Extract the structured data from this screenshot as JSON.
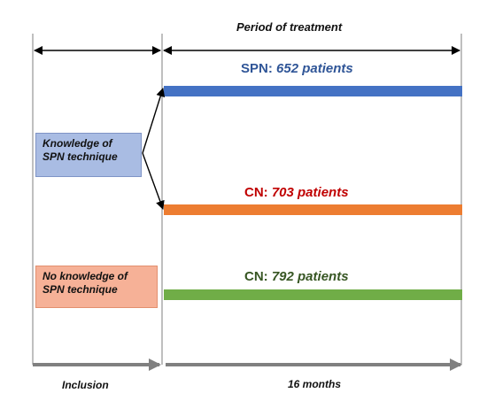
{
  "labels": {
    "period": "Period of treatment",
    "inclusion": "Inclusion",
    "months": "16 months"
  },
  "boxes": {
    "knowledge": {
      "line1": "Knowledge of",
      "line2": "SPN technique"
    },
    "no_knowledge": {
      "line1": "No knowledge of",
      "line2": "SPN technique"
    }
  },
  "groups": [
    {
      "prefix": "SPN: ",
      "count": "652 patients",
      "color": "#2f5597"
    },
    {
      "prefix": "CN: ",
      "count": "703 patients",
      "color": "#c00000"
    },
    {
      "prefix": "CN: ",
      "count": "792 patients",
      "color": "#375623"
    }
  ],
  "colors": {
    "spn_bar": "#4472c4",
    "cn_orange_bar": "#ed7d31",
    "cn_green_bar": "#70ad47",
    "timeline_arrow": "#808080",
    "knowledge_box_fill": "#a9bce3",
    "no_knowledge_box_fill": "#f6b197"
  }
}
